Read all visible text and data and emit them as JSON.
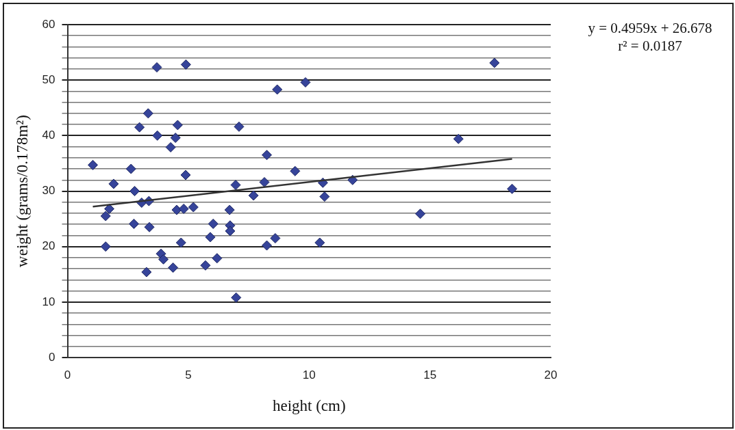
{
  "chart_data": {
    "type": "scatter",
    "xlabel": "height (cm)",
    "ylabel": "weight (grams/0.178m²)",
    "annotations": [
      "y = 0.4959x + 26.678",
      "r² = 0.0187"
    ],
    "xlim": [
      0,
      20
    ],
    "xticks": [
      0,
      5,
      10,
      15,
      20
    ],
    "ylim": [
      0,
      60
    ],
    "yticks": [
      0,
      {
        "value": 2,
        "label": null
      },
      {
        "value": 4,
        "label": null
      },
      {
        "value": 6,
        "label": null
      },
      {
        "value": 8,
        "label": null
      },
      10,
      {
        "value": 12,
        "label": null
      },
      {
        "value": 14,
        "label": null
      },
      {
        "value": 16,
        "label": null
      },
      {
        "value": 18,
        "label": null
      },
      20,
      {
        "value": 22,
        "label": null
      },
      {
        "value": 24,
        "label": null
      },
      {
        "value": 26,
        "label": null
      },
      {
        "value": 28,
        "label": null
      },
      30,
      {
        "value": 32,
        "label": null
      },
      {
        "value": 34,
        "label": null
      },
      {
        "value": 36,
        "label": null
      },
      {
        "value": 38,
        "label": null
      },
      40,
      {
        "value": 42,
        "label": null
      },
      {
        "value": 44,
        "label": null
      },
      {
        "value": 46,
        "label": null
      },
      {
        "value": 48,
        "label": null
      },
      50,
      {
        "value": 52,
        "label": null
      },
      {
        "value": 54,
        "label": null
      },
      {
        "value": 56,
        "label": null
      },
      {
        "value": 58,
        "label": null
      },
      60
    ],
    "grid": "y",
    "legend": false,
    "marker": "diamond",
    "series": [
      {
        "color": "#36449a",
        "x": [
          3.7,
          4.9,
          8.68,
          9.85,
          3.34,
          2.98,
          4.56,
          7.1,
          3.72,
          4.47,
          4.27,
          8.25,
          1.05,
          2.63,
          4.89,
          9.42,
          1.91,
          6.96,
          8.15,
          7.7,
          2.78,
          3.07,
          3.37,
          1.73,
          1.58,
          4.52,
          4.81,
          5.21,
          6.71,
          2.75,
          3.39,
          6.03,
          6.73,
          6.73,
          5.91,
          4.7,
          1.58,
          8.25,
          8.6,
          3.87,
          3.97,
          4.37,
          3.27,
          5.71,
          6.19,
          6.98,
          17.67,
          16.18,
          10.57,
          11.8,
          10.64,
          18.4,
          14.6,
          10.44
        ],
        "values": [
          52.3,
          52.8,
          48.3,
          49.6,
          44.0,
          41.5,
          41.9,
          41.6,
          40.0,
          39.6,
          37.9,
          36.5,
          34.7,
          34.0,
          32.9,
          33.6,
          31.3,
          31.1,
          31.6,
          29.2,
          30.0,
          27.9,
          28.2,
          26.8,
          25.5,
          26.6,
          26.8,
          27.1,
          26.6,
          24.1,
          23.5,
          24.1,
          23.8,
          22.8,
          21.7,
          20.7,
          20.0,
          20.2,
          21.5,
          18.7,
          17.7,
          16.2,
          15.4,
          16.6,
          17.9,
          10.8,
          53.1,
          39.4,
          31.5,
          32.0,
          29.0,
          30.4,
          25.9,
          20.7
        ]
      },
      {
        "type": "line",
        "color": "#333333",
        "marker": "none",
        "line_style": "solid",
        "x": [
          1.05,
          18.4
        ],
        "values": [
          27.2,
          35.8
        ]
      }
    ]
  }
}
